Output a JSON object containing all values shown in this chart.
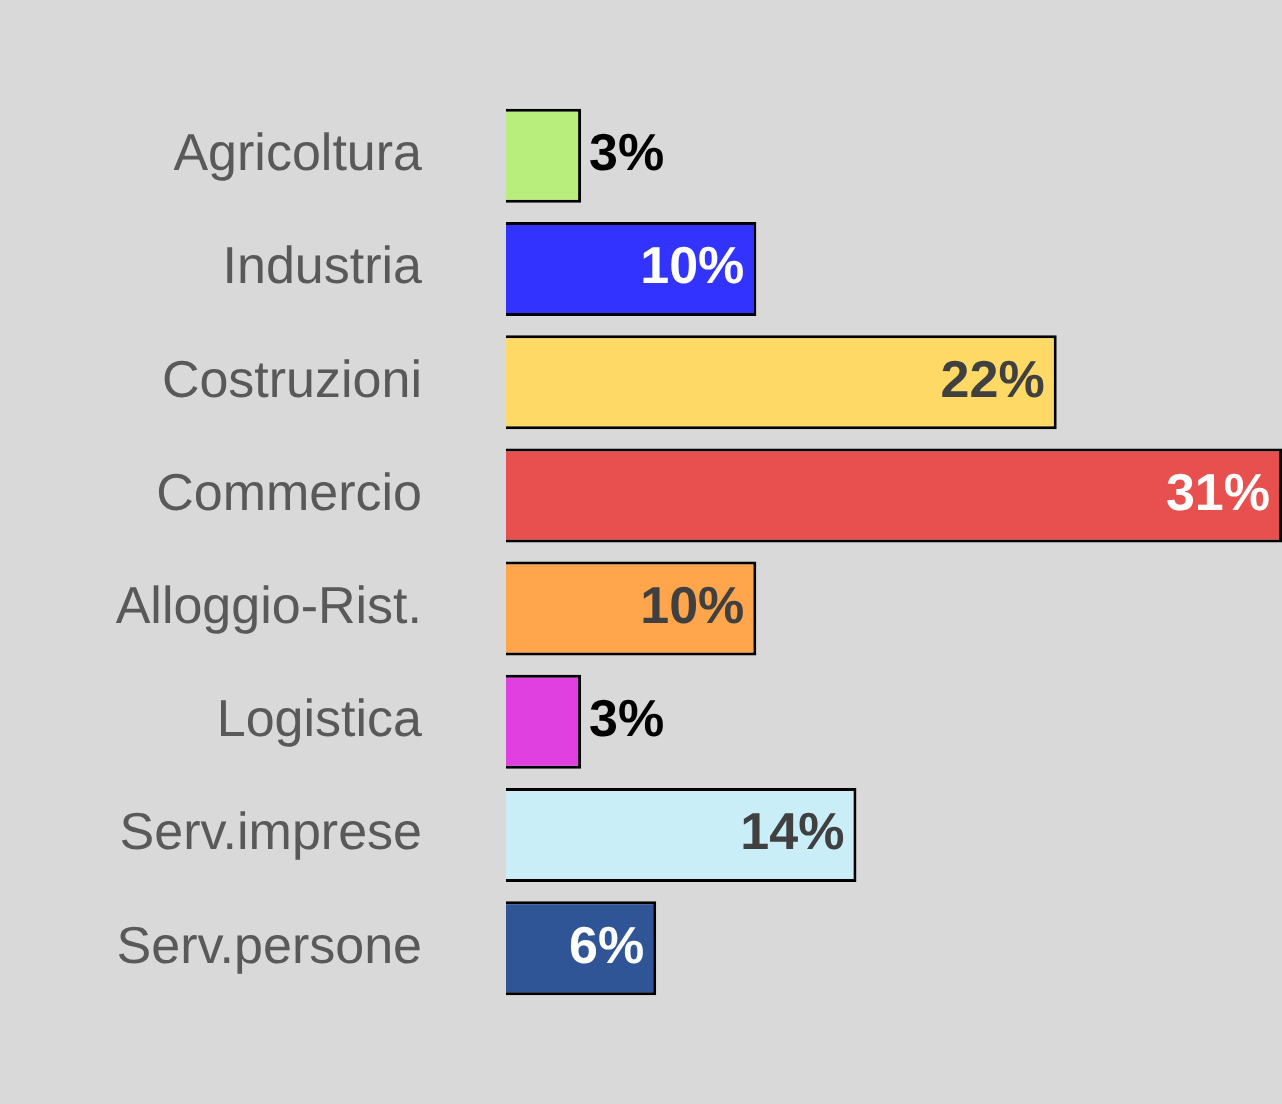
{
  "chart_data": {
    "type": "bar",
    "orientation": "horizontal",
    "categories": [
      "Agricoltura",
      "Industria",
      "Costruzioni",
      "Commercio",
      "Alloggio-Rist.",
      "Logistica",
      "Serv.imprese",
      "Serv.persone"
    ],
    "values": [
      3,
      10,
      22,
      31,
      10,
      3,
      14,
      6
    ],
    "colors": [
      "#b7ee7c",
      "#3333ff",
      "#ffd966",
      "#e85050",
      "#ffa64d",
      "#e040e0",
      "#c9eef8",
      "#2f5597"
    ],
    "value_labels": [
      "3%",
      "10%",
      "22%",
      "31%",
      "10%",
      "3%",
      "14%",
      "6%"
    ],
    "legend": false
  }
}
